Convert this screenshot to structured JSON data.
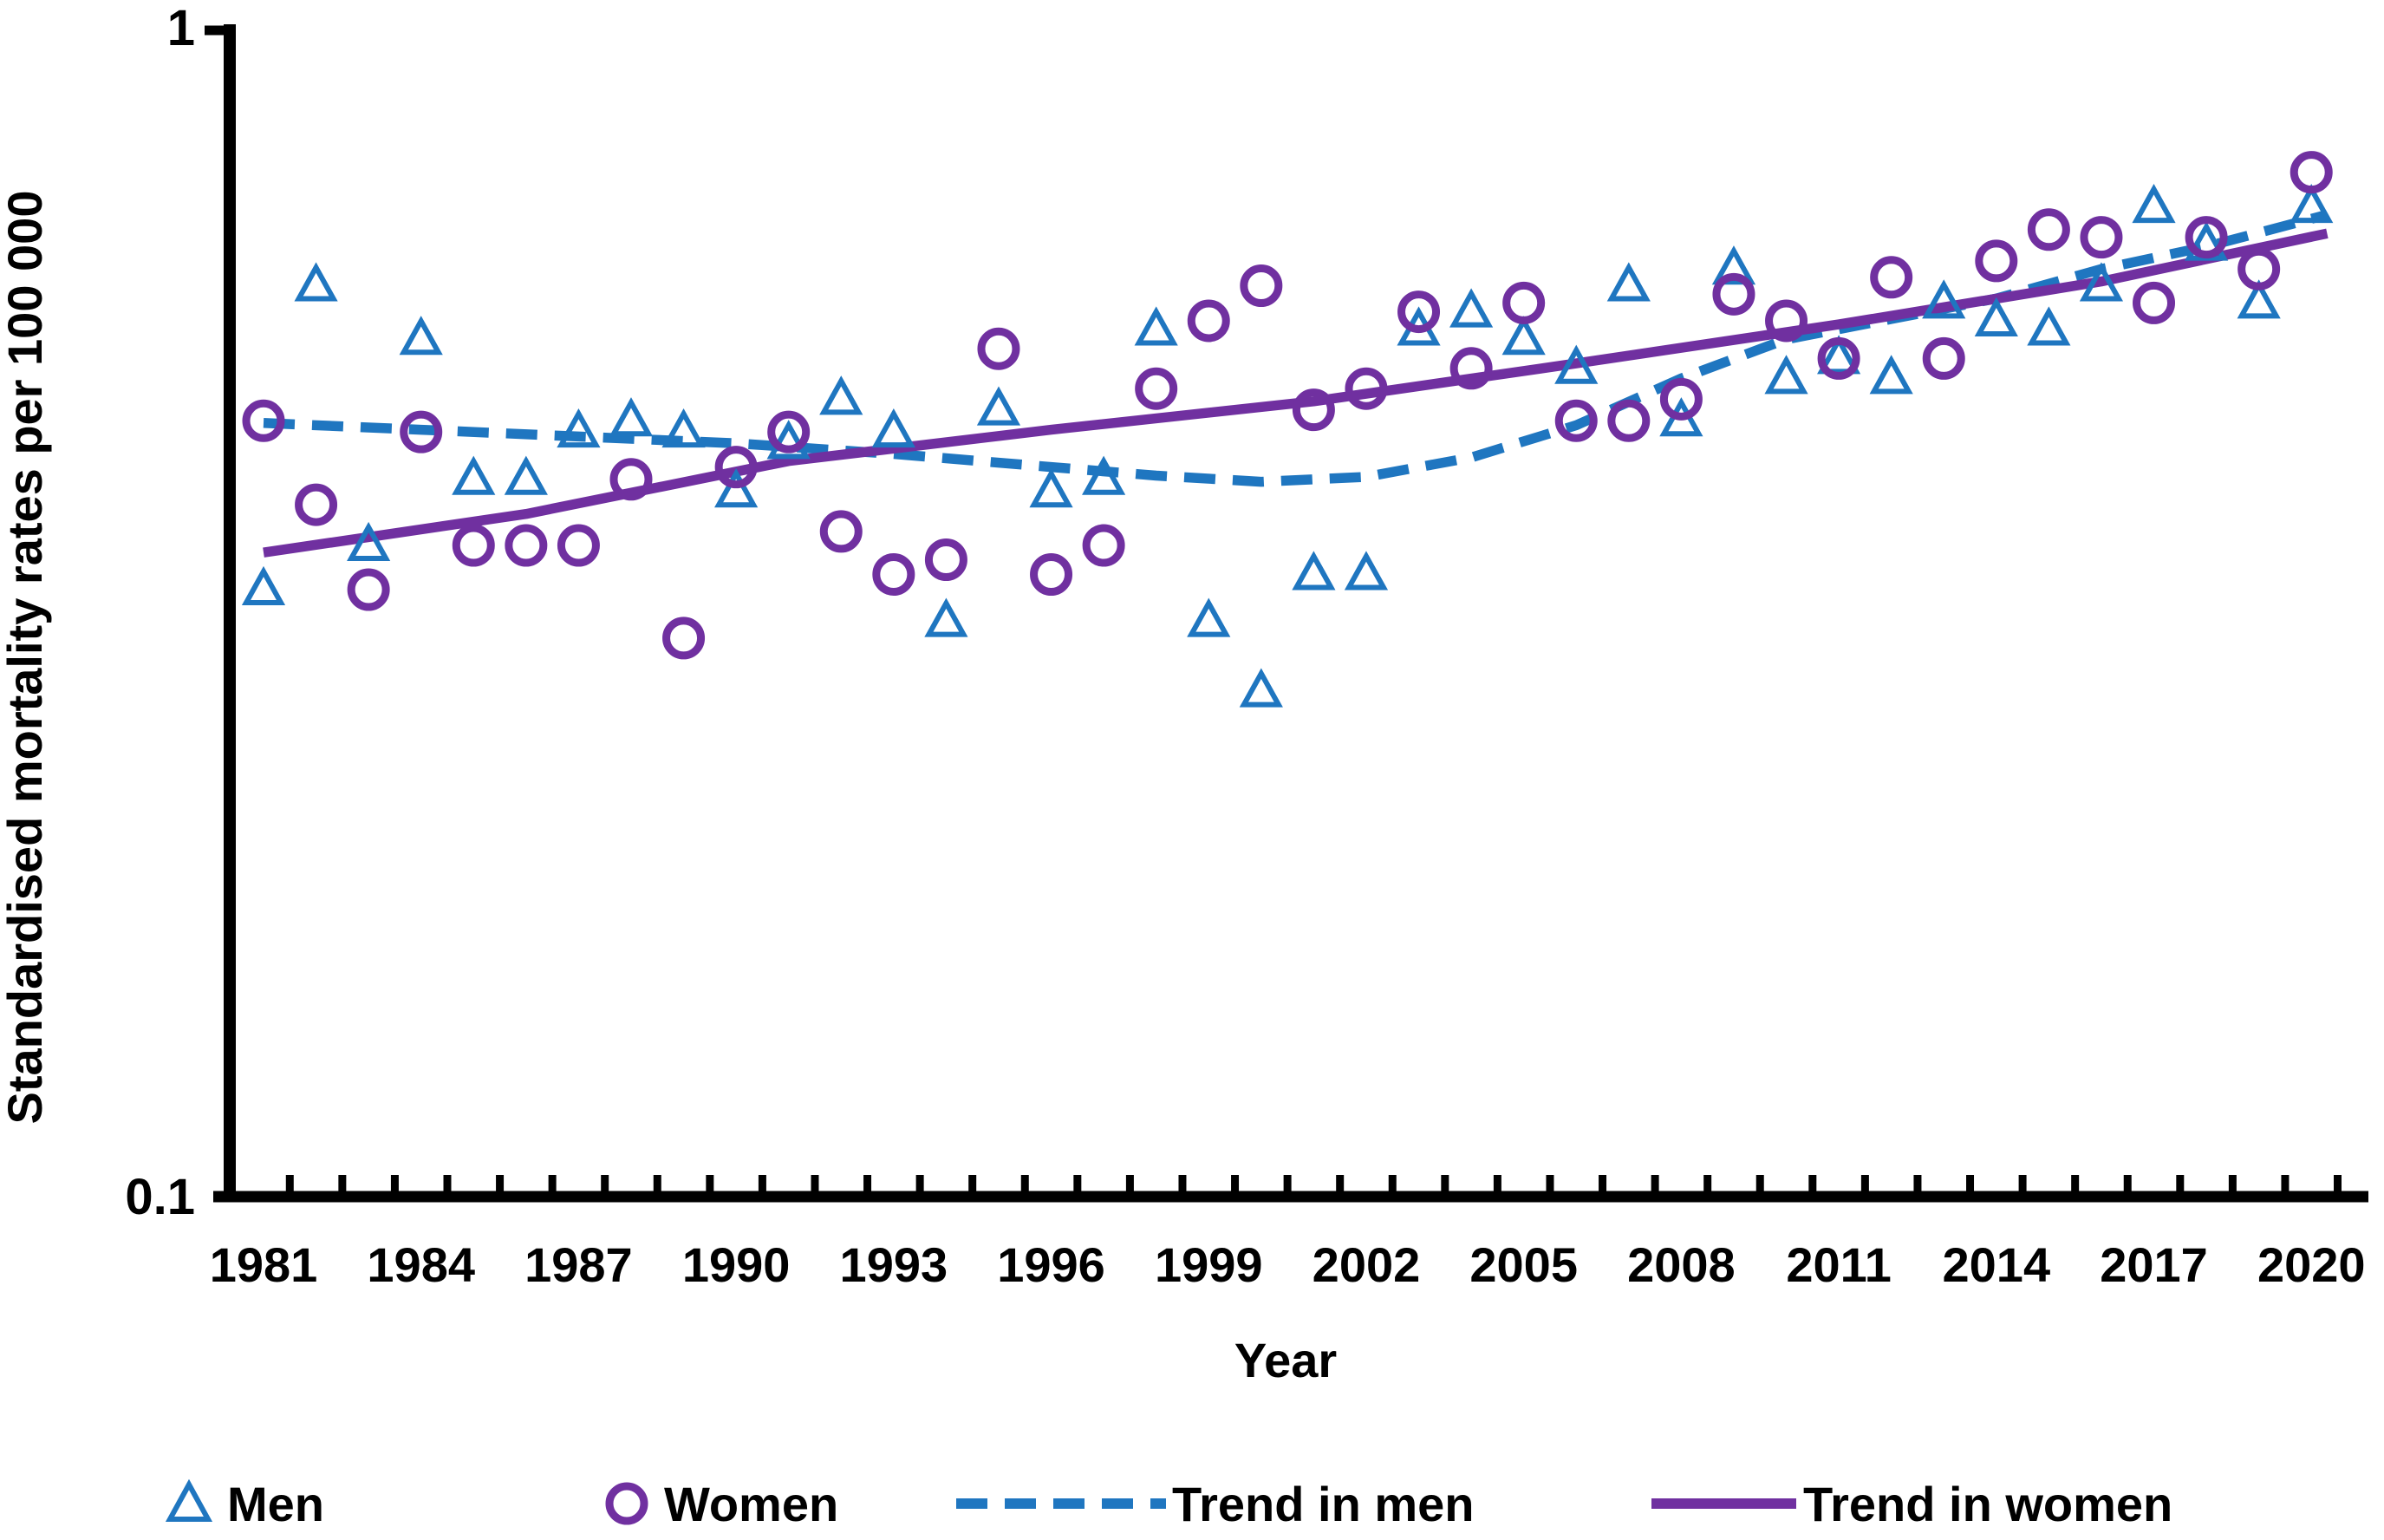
{
  "page": {
    "background": "#ffffff"
  },
  "colors": {
    "men_blue": "#1F76C0",
    "women_purple": "#7030A0",
    "axis_black": "#000000"
  },
  "chart_data": {
    "type": "scatter",
    "title": "",
    "xlabel": "Year",
    "ylabel": "Standardised mortality rates per 100 000",
    "y_scale": "log",
    "ylim": [
      0.1,
      1
    ],
    "xlim": [
      1981,
      2020
    ],
    "grid": false,
    "legend_position": "bottom",
    "y_ticks": [
      {
        "value": 1,
        "label": "1"
      },
      {
        "value": 0.1,
        "label": "0.1"
      }
    ],
    "x_tick_label_years": [
      1981,
      1984,
      1987,
      1990,
      1993,
      1996,
      1999,
      2002,
      2005,
      2008,
      2011,
      2014,
      2017,
      2020
    ],
    "x_minor_ticks_every_year": true,
    "x_start": 1981,
    "series": [
      {
        "name": "Men",
        "marker": "triangle",
        "color": "#1F76C0",
        "values": [
          0.33,
          0.6,
          0.36,
          0.54,
          0.41,
          0.41,
          0.45,
          0.46,
          0.45,
          0.4,
          0.44,
          0.48,
          0.45,
          0.31,
          0.47,
          0.4,
          0.41,
          0.55,
          0.31,
          0.27,
          0.34,
          0.34,
          0.55,
          0.57,
          0.54,
          0.51,
          0.6,
          0.46,
          0.62,
          0.5,
          0.52,
          0.5,
          0.58,
          0.56,
          0.55,
          0.6,
          0.7,
          0.65,
          0.58,
          0.7
        ]
      },
      {
        "name": "Women",
        "marker": "circle",
        "color": "#7030A0",
        "values": [
          0.46,
          0.39,
          0.33,
          0.45,
          0.36,
          0.36,
          0.36,
          0.41,
          0.3,
          0.42,
          0.45,
          0.37,
          0.34,
          0.35,
          0.53,
          0.34,
          0.36,
          0.49,
          0.56,
          0.6,
          0.47,
          0.49,
          0.57,
          0.51,
          0.58,
          0.46,
          0.46,
          0.48,
          0.59,
          0.56,
          0.52,
          0.61,
          0.52,
          0.63,
          0.67,
          0.66,
          0.58,
          0.66,
          0.62,
          0.75
        ]
      }
    ],
    "trends": [
      {
        "name": "Trend in men",
        "style": "dashed",
        "color": "#1F76C0",
        "points": [
          [
            1981,
            0.458
          ],
          [
            1984,
            0.452
          ],
          [
            1987,
            0.446
          ],
          [
            1990,
            0.44
          ],
          [
            1993,
            0.431
          ],
          [
            1996,
            0.42
          ],
          [
            1998,
            0.413
          ],
          [
            2000,
            0.408
          ],
          [
            2002,
            0.412
          ],
          [
            2004,
            0.428
          ],
          [
            2006,
            0.456
          ],
          [
            2008,
            0.5
          ],
          [
            2010,
            0.54
          ],
          [
            2012,
            0.562
          ],
          [
            2014,
            0.585
          ],
          [
            2016,
            0.62
          ],
          [
            2018,
            0.648
          ],
          [
            2020.3,
            0.69
          ]
        ]
      },
      {
        "name": "Trend in women",
        "style": "solid",
        "color": "#7030A0",
        "points": [
          [
            1981,
            0.355
          ],
          [
            1986,
            0.383
          ],
          [
            1991,
            0.425
          ],
          [
            1996,
            0.452
          ],
          [
            2001,
            0.478
          ],
          [
            2006,
            0.515
          ],
          [
            2011,
            0.556
          ],
          [
            2016,
            0.605
          ],
          [
            2020.3,
            0.665
          ]
        ]
      }
    ]
  },
  "legend": {
    "items": [
      {
        "label": "Men",
        "symbol": "triangle-outline",
        "color": "#1F76C0"
      },
      {
        "label": "Women",
        "symbol": "circle-outline",
        "color": "#7030A0"
      },
      {
        "label": "Trend in men",
        "symbol": "dashed-line",
        "color": "#1F76C0"
      },
      {
        "label": "Trend in women",
        "symbol": "solid-line",
        "color": "#7030A0"
      }
    ]
  }
}
